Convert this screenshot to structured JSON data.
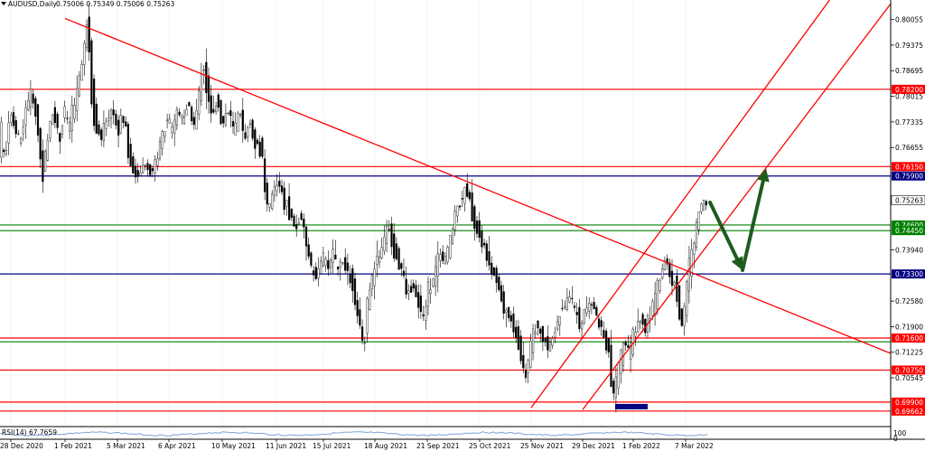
{
  "header": {
    "symbol": "AUDUSD,Daily",
    "ohlc": "0.75006 0.75349 0.75006 0.75263"
  },
  "indicator": {
    "label": "RSI(14) 67.7659",
    "value": 67.7659,
    "scale_top": "100",
    "scale_bottom": "0"
  },
  "chart_data": {
    "type": "candlestick",
    "symbol": "AUDUSD",
    "timeframe": "Daily",
    "x_tick_labels": [
      "28 Dec 2020",
      "1 Feb 2021",
      "5 Mar 2021",
      "6 Apr 2021",
      "10 May 2021",
      "11 Jun 2021",
      "15 Jul 2021",
      "18 Aug 2021",
      "21 Sep 2021",
      "25 Oct 2021",
      "25 Nov 2021",
      "29 Dec 2021",
      "1 Feb 2022",
      "7 Mar 2022"
    ],
    "y_tick_labels": [
      0.80055,
      0.79375,
      0.78695,
      0.78015,
      0.77335,
      0.76655,
      0.7394,
      0.7258,
      0.719,
      0.71225,
      0.70545
    ],
    "ylim": [
      0.6925,
      0.8057
    ],
    "current_price": 0.75263,
    "price_path": [
      [
        0,
        0.77
      ],
      [
        6,
        0.764
      ],
      [
        12,
        0.775
      ],
      [
        18,
        0.771
      ],
      [
        24,
        0.768
      ],
      [
        30,
        0.777
      ],
      [
        36,
        0.781
      ],
      [
        42,
        0.774
      ],
      [
        48,
        0.76
      ],
      [
        52,
        0.764
      ],
      [
        57,
        0.774
      ],
      [
        62,
        0.776
      ],
      [
        67,
        0.768
      ],
      [
        72,
        0.776
      ],
      [
        78,
        0.772
      ],
      [
        84,
        0.778
      ],
      [
        90,
        0.785
      ],
      [
        94,
        0.792
      ],
      [
        98,
        0.799
      ],
      [
        101,
        0.788
      ],
      [
        104,
        0.778
      ],
      [
        108,
        0.773
      ],
      [
        114,
        0.769
      ],
      [
        120,
        0.774
      ],
      [
        126,
        0.776
      ],
      [
        132,
        0.771
      ],
      [
        138,
        0.775
      ],
      [
        144,
        0.765
      ],
      [
        150,
        0.76
      ],
      [
        156,
        0.759
      ],
      [
        162,
        0.762
      ],
      [
        168,
        0.76
      ],
      [
        174,
        0.763
      ],
      [
        180,
        0.768
      ],
      [
        186,
        0.774
      ],
      [
        192,
        0.772
      ],
      [
        198,
        0.776
      ],
      [
        204,
        0.774
      ],
      [
        210,
        0.778
      ],
      [
        216,
        0.772
      ],
      [
        222,
        0.781
      ],
      [
        226,
        0.788
      ],
      [
        230,
        0.783
      ],
      [
        236,
        0.775
      ],
      [
        242,
        0.779
      ],
      [
        248,
        0.773
      ],
      [
        254,
        0.776
      ],
      [
        260,
        0.771
      ],
      [
        266,
        0.775
      ],
      [
        272,
        0.77
      ],
      [
        278,
        0.773
      ],
      [
        284,
        0.768
      ],
      [
        290,
        0.767
      ],
      [
        294,
        0.757
      ],
      [
        298,
        0.75
      ],
      [
        304,
        0.755
      ],
      [
        310,
        0.758
      ],
      [
        316,
        0.752
      ],
      [
        322,
        0.75
      ],
      [
        328,
        0.745
      ],
      [
        334,
        0.748
      ],
      [
        340,
        0.742
      ],
      [
        346,
        0.735
      ],
      [
        352,
        0.732
      ],
      [
        358,
        0.737
      ],
      [
        364,
        0.735
      ],
      [
        370,
        0.738
      ],
      [
        376,
        0.734
      ],
      [
        382,
        0.737
      ],
      [
        388,
        0.732
      ],
      [
        394,
        0.727
      ],
      [
        400,
        0.718
      ],
      [
        404,
        0.715
      ],
      [
        408,
        0.725
      ],
      [
        414,
        0.733
      ],
      [
        420,
        0.737
      ],
      [
        426,
        0.741
      ],
      [
        430,
        0.746
      ],
      [
        434,
        0.742
      ],
      [
        440,
        0.738
      ],
      [
        446,
        0.734
      ],
      [
        452,
        0.728
      ],
      [
        458,
        0.73
      ],
      [
        464,
        0.726
      ],
      [
        470,
        0.722
      ],
      [
        476,
        0.729
      ],
      [
        482,
        0.732
      ],
      [
        488,
        0.738
      ],
      [
        494,
        0.736
      ],
      [
        500,
        0.742
      ],
      [
        506,
        0.75
      ],
      [
        510,
        0.752
      ],
      [
        516,
        0.755
      ],
      [
        522,
        0.751
      ],
      [
        528,
        0.746
      ],
      [
        534,
        0.742
      ],
      [
        540,
        0.738
      ],
      [
        546,
        0.735
      ],
      [
        552,
        0.731
      ],
      [
        558,
        0.725
      ],
      [
        564,
        0.722
      ],
      [
        570,
        0.719
      ],
      [
        576,
        0.714
      ],
      [
        582,
        0.706
      ],
      [
        586,
        0.71
      ],
      [
        590,
        0.716
      ],
      [
        596,
        0.72
      ],
      [
        602,
        0.716
      ],
      [
        608,
        0.713
      ],
      [
        614,
        0.717
      ],
      [
        620,
        0.722
      ],
      [
        626,
        0.725
      ],
      [
        632,
        0.727
      ],
      [
        638,
        0.723
      ],
      [
        644,
        0.72
      ],
      [
        650,
        0.724
      ],
      [
        656,
        0.725
      ],
      [
        662,
        0.722
      ],
      [
        668,
        0.718
      ],
      [
        674,
        0.714
      ],
      [
        680,
        0.701
      ],
      [
        684,
        0.706
      ],
      [
        688,
        0.71
      ],
      [
        692,
        0.715
      ],
      [
        698,
        0.712
      ],
      [
        704,
        0.718
      ],
      [
        710,
        0.721
      ],
      [
        716,
        0.719
      ],
      [
        722,
        0.723
      ],
      [
        728,
        0.728
      ],
      [
        734,
        0.734
      ],
      [
        738,
        0.737
      ],
      [
        742,
        0.733
      ],
      [
        746,
        0.731
      ],
      [
        750,
        0.729
      ],
      [
        756,
        0.719
      ],
      [
        760,
        0.726
      ],
      [
        764,
        0.735
      ],
      [
        768,
        0.739
      ],
      [
        772,
        0.745
      ],
      [
        776,
        0.75
      ],
      [
        780,
        0.752
      ],
      [
        784,
        0.7526
      ]
    ],
    "horizontal_levels": [
      {
        "label": "0.78200",
        "value": 0.782,
        "color": "#ff0000",
        "labeled": true
      },
      {
        "label": "0.76150",
        "value": 0.7615,
        "color": "#ff0000",
        "labeled": true
      },
      {
        "label": "0.75900",
        "value": 0.759,
        "color": "#000080",
        "labeled": true
      },
      {
        "label": "0.74600",
        "value": 0.746,
        "color": "#008000",
        "labeled": true
      },
      {
        "label": "0.74450",
        "value": 0.7445,
        "color": "#008000",
        "labeled": true
      },
      {
        "label": "0.73300",
        "value": 0.733,
        "color": "#000080",
        "labeled": true
      },
      {
        "label": "0.71600",
        "value": 0.716,
        "color": "#ff0000",
        "labeled": true
      },
      {
        "label": "0.71500",
        "value": 0.715,
        "color": "#008000",
        "labeled": false
      },
      {
        "label": "0.70750",
        "value": 0.7075,
        "color": "#ff0000",
        "labeled": true
      },
      {
        "label": "0.69900",
        "value": 0.699,
        "color": "#ff0000",
        "labeled": true
      },
      {
        "label": "0.69662",
        "value": 0.69662,
        "color": "#ff0000",
        "labeled": true
      }
    ],
    "trendlines": [
      {
        "name": "",
        "color": "#ff0000",
        "points": [
          [
            "1 Feb 2021",
            0.8008
          ],
          [
            "7 Mar 2022",
            0.734
          ]
        ]
      },
      {
        "name": "",
        "color": "#ff0000",
        "points": [
          [
            "25 Nov 2021",
            0.6975
          ],
          [
            "7 Mar 2022",
            0.7535
          ]
        ]
      },
      {
        "name": "",
        "color": "#ff0000",
        "points": [
          [
            "29 Dec 2021",
            0.697
          ],
          [
            "7 Mar 2022",
            0.733
          ]
        ]
      }
    ],
    "arrows": [
      {
        "color": "#1e5c1e",
        "from": 0.752,
        "to": 0.734,
        "direction": "down"
      },
      {
        "color": "#1e5c1e",
        "from": 0.734,
        "to": 0.761,
        "direction": "up"
      }
    ],
    "colors": {
      "bull": "#ffffff",
      "bear": "#000000",
      "level_red": "#ff0000",
      "level_green": "#008000",
      "level_navy": "#000080",
      "arrow": "#1e5c1e",
      "current_price_bg": "#ffffff"
    }
  }
}
